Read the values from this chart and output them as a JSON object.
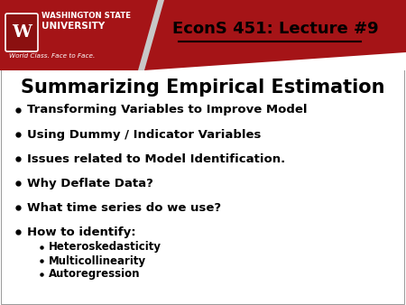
{
  "title": "Summarizing Empirical Estimation",
  "header_title": "EconS 451: Lecture #9",
  "header_bg_color": "#a51417",
  "slide_bg_color": "#ffffff",
  "title_fontsize": 15,
  "header_fontsize": 13,
  "bullet_fontsize": 9.5,
  "sub_bullet_fontsize": 8.5,
  "bullets": [
    "Transforming Variables to Improve Model",
    "Using Dummy / Indicator Variables",
    "Issues related to Model Identification.",
    "Why Deflate Data?",
    "What time series do we use?",
    "How to identify:"
  ],
  "sub_bullets": [
    "Heteroskedasticity",
    "Multicollinearity",
    "Autoregression"
  ],
  "wsu_text_line1": "WASHINGTON STATE",
  "wsu_text_line2": "UNIVERSITY",
  "wsu_tagline": "World Class. Face to Face.",
  "text_color": "#000000",
  "header_text_color": "#000000",
  "header_underline_color": "#000000",
  "gray_sep_color": "#c8c8c8",
  "shield_bg_color": "#8b1010",
  "border_color": "#999999"
}
